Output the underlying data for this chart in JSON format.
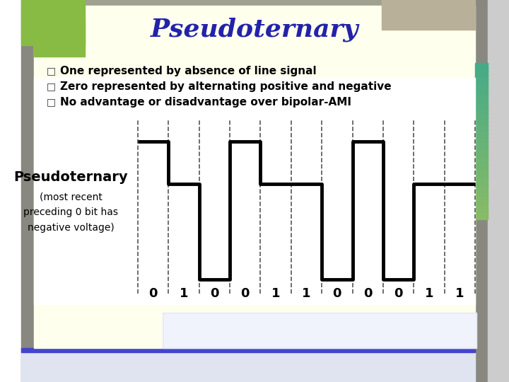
{
  "title": "Pseudoternary",
  "bullets": [
    "One represented by absence of line signal",
    "Zero represented by alternating positive and negative",
    "No advantage or disadvantage over bipolar-AMI"
  ],
  "bits": [
    0,
    1,
    0,
    0,
    1,
    1,
    0,
    0,
    0,
    1,
    1
  ],
  "signal": [
    1,
    0,
    -1,
    1,
    0,
    0,
    -1,
    1,
    -1,
    0,
    0
  ],
  "bg_page": "#a0a090",
  "bg_slide": "#ffffee",
  "bg_signal": "#ffffff",
  "left_white": "#ffffff",
  "left_gray": "#888880",
  "top_green": "#88bb44",
  "top_right_tan": "#b8b098",
  "right_green_top": "#88bb66",
  "right_green_bot": "#44aa88",
  "bottom_blue": "#4444cc",
  "bottom_bar": "#d0d8f0",
  "title_color": "#2222aa",
  "signal_color": "#000000",
  "grid_color": "#555555",
  "text_color": "#000000",
  "line_width": 3.5,
  "dashed_lw": 1.2
}
